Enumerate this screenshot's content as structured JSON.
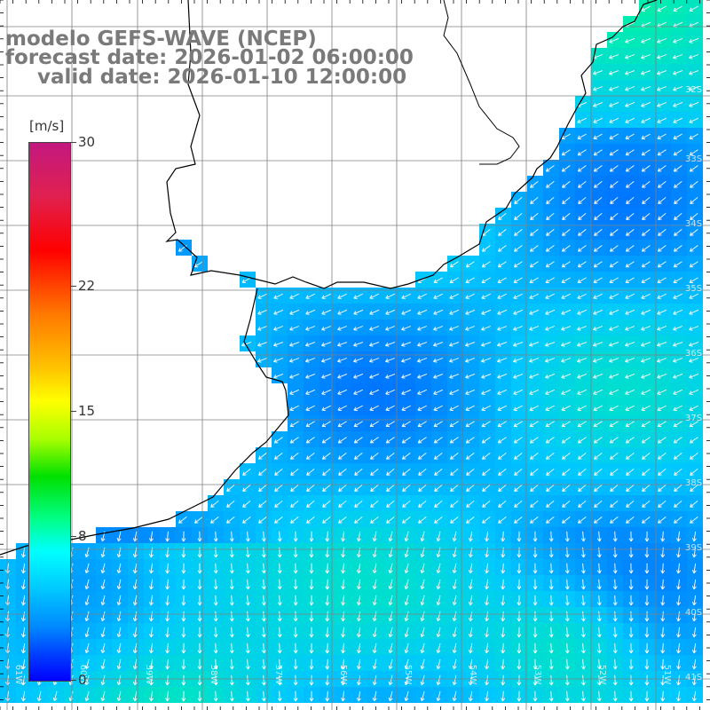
{
  "title": {
    "line1": "modelo GEFS-WAVE (NCEP)",
    "line2": "forecast date: 2026-01-02 06:00:00",
    "line3": "valid date: 2026-01-10 12:00:00"
  },
  "legend": {
    "unit": "[m/s]",
    "ticks": [
      "30",
      "22",
      "15",
      "8",
      "0"
    ],
    "tick_values": [
      30,
      22,
      15,
      8,
      0
    ],
    "range": [
      0,
      30
    ]
  },
  "map": {
    "lat_labels": [
      "32S",
      "33S",
      "34S",
      "35S",
      "36S",
      "37S",
      "38S",
      "39S",
      "40S",
      "41S"
    ],
    "lon_labels": [
      "61W",
      "60W",
      "59W",
      "58W",
      "57W",
      "56W",
      "55W",
      "54W",
      "53W",
      "52W",
      "51W"
    ],
    "colors": {
      "land": "#ffffff",
      "coast": "#000000",
      "grid": "#808080",
      "arrow": "#ffffff",
      "low_speed": "#0040ff",
      "mid_speed": "#00c8ff",
      "high_speed": "#00ff88"
    }
  }
}
